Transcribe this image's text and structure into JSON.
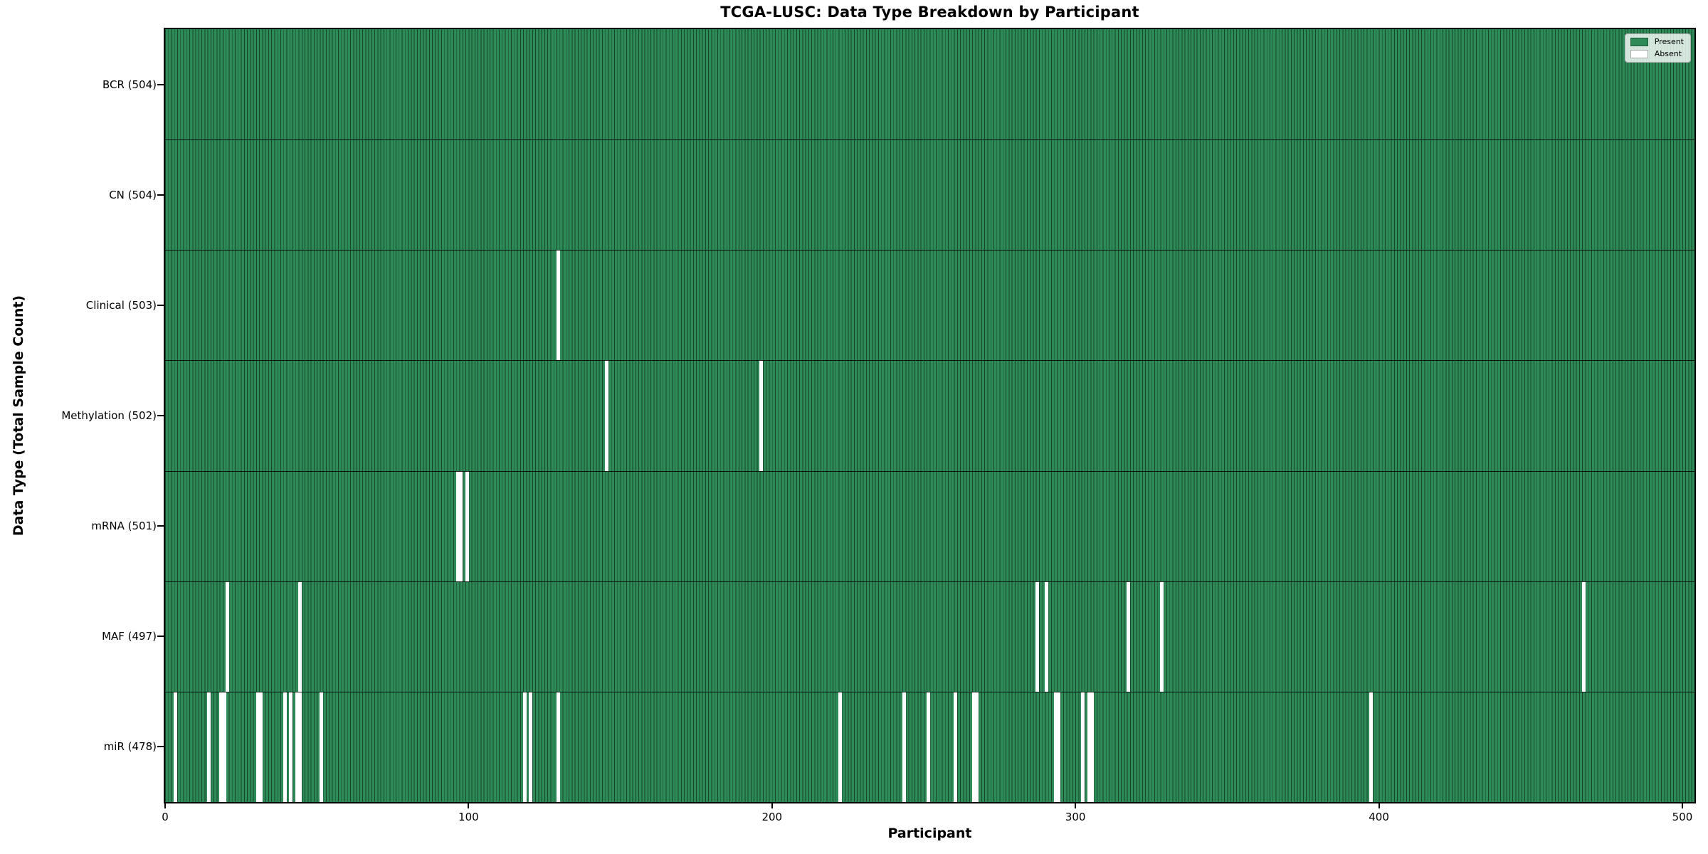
{
  "page": {
    "title": "TCGA-LUSC: Data Type Breakdown by Participant"
  },
  "chart_data": {
    "type": "heatmap",
    "title": "TCGA-LUSC: Data Type Breakdown by Participant",
    "xlabel": "Participant",
    "ylabel": "Data Type (Total Sample Count)",
    "x_ticks": [
      0,
      100,
      200,
      300,
      400,
      500
    ],
    "x_range": [
      0,
      504
    ],
    "n_participants": 504,
    "grid": false,
    "legend_position": "upper right",
    "legend": [
      {
        "label": "Present",
        "color": "#2e8b57"
      },
      {
        "label": "Absent",
        "color": "#ffffff"
      }
    ],
    "rows": [
      {
        "label": "BCR (504)",
        "data_type": "BCR",
        "present_count": 504,
        "absent_participants": []
      },
      {
        "label": "CN (504)",
        "data_type": "CN",
        "present_count": 504,
        "absent_participants": []
      },
      {
        "label": "Clinical (503)",
        "data_type": "Clinical",
        "present_count": 503,
        "absent_participants": [
          129
        ]
      },
      {
        "label": "Methylation (502)",
        "data_type": "Methylation",
        "present_count": 502,
        "absent_participants": [
          145,
          196
        ]
      },
      {
        "label": "mRNA (501)",
        "data_type": "mRNA",
        "present_count": 501,
        "absent_participants": [
          96,
          97,
          99
        ]
      },
      {
        "label": "MAF (497)",
        "data_type": "MAF",
        "present_count": 497,
        "absent_participants": [
          20,
          44,
          287,
          290,
          317,
          328,
          467
        ]
      },
      {
        "label": "miR (478)",
        "data_type": "miR",
        "present_count": 478,
        "absent_participants": [
          3,
          14,
          18,
          19,
          30,
          31,
          39,
          41,
          43,
          44,
          51,
          118,
          120,
          129,
          222,
          243,
          251,
          260,
          266,
          267,
          293,
          294,
          302,
          304,
          305,
          397
        ]
      }
    ],
    "colors": {
      "present": "#2e8b57",
      "absent": "#ffffff",
      "bar_edge": "rgba(0,0,0,0.5)",
      "spine": "#000000"
    }
  }
}
